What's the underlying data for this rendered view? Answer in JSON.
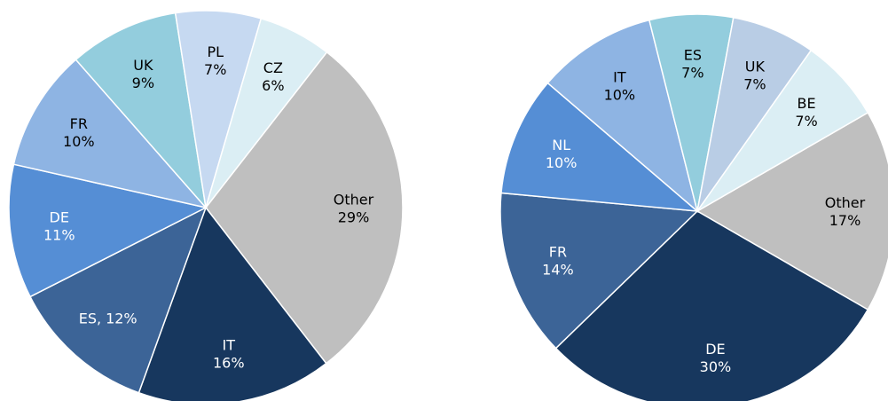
{
  "chart_data": [
    {
      "type": "pie",
      "start_angle": 37.9,
      "categories": [
        "Other",
        "IT",
        "ES,",
        "DE",
        "FR",
        "UK",
        "PL",
        "CZ"
      ],
      "values": [
        29,
        16,
        12,
        11,
        10,
        9,
        7,
        6
      ],
      "value_labels": [
        "29%",
        "16%",
        "12%",
        "11%",
        "10%",
        "9%",
        "7%",
        "6%"
      ],
      "colors": [
        "#bfbfbf",
        "#17375e",
        "#3c6497",
        "#558ed5",
        "#8eb4e3",
        "#93cddd",
        "#c6d9f1",
        "#dbeef4"
      ],
      "one_line_labels": [
        2
      ]
    },
    {
      "type": "pie",
      "start_angle": 60,
      "categories": [
        "Other",
        "DE",
        "FR",
        "NL",
        "IT",
        "ES",
        "UK",
        "BE"
      ],
      "values": [
        17,
        30,
        14,
        10,
        10,
        7,
        7,
        7
      ],
      "value_labels": [
        "17%",
        "30%",
        "14%",
        "10%",
        "10%",
        "7%",
        "7%",
        "7%"
      ],
      "colors": [
        "#bfbfbf",
        "#17375e",
        "#3c6497",
        "#558ed5",
        "#8eb4e3",
        "#93cddd",
        "#b9cde5",
        "#dbeef4"
      ],
      "one_line_labels": []
    }
  ]
}
